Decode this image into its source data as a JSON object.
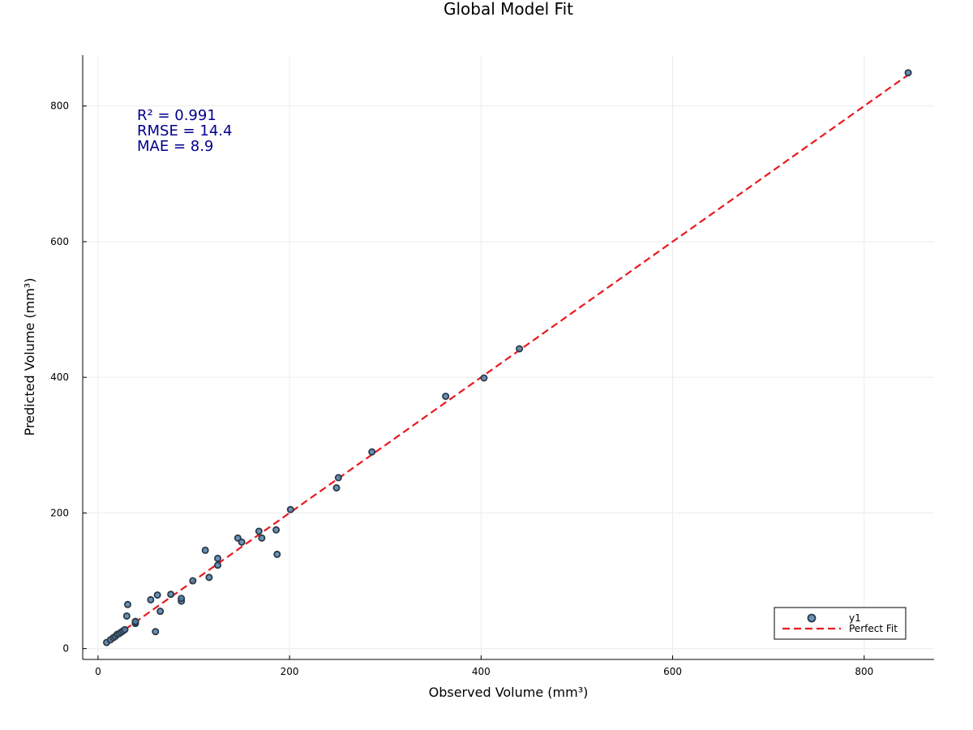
{
  "chart_data": {
    "type": "scatter",
    "title": "Global Model Fit",
    "xlabel": "Observed Volume (mm³)",
    "ylabel": "Predicted Volume (mm³)",
    "xlim": [
      -16,
      873
    ],
    "ylim": [
      -16,
      875
    ],
    "xticks": [
      0,
      200,
      400,
      600,
      800
    ],
    "yticks": [
      0,
      200,
      400,
      600,
      800
    ],
    "grid": true,
    "legend_position": "bottom-right",
    "annotations": [
      "R² = 0.991",
      "RMSE = 14.4",
      "MAE = 8.9"
    ],
    "annotation_color": "#00008b",
    "series": [
      {
        "name": "y1",
        "kind": "scatter",
        "color": "#4f7fa8",
        "points": [
          [
            9,
            9
          ],
          [
            13,
            13
          ],
          [
            16,
            16
          ],
          [
            18,
            18
          ],
          [
            20,
            21
          ],
          [
            22,
            22
          ],
          [
            24,
            24
          ],
          [
            26,
            26
          ],
          [
            28,
            28
          ],
          [
            30,
            48
          ],
          [
            31,
            65
          ],
          [
            39,
            37
          ],
          [
            39,
            38
          ],
          [
            39,
            39
          ],
          [
            39,
            40
          ],
          [
            55,
            72
          ],
          [
            60,
            25
          ],
          [
            62,
            79
          ],
          [
            65,
            55
          ],
          [
            76,
            80
          ],
          [
            87,
            70
          ],
          [
            87,
            74
          ],
          [
            99,
            100
          ],
          [
            112,
            145
          ],
          [
            116,
            105
          ],
          [
            125,
            123
          ],
          [
            125,
            133
          ],
          [
            146,
            163
          ],
          [
            150,
            157
          ],
          [
            168,
            173
          ],
          [
            171,
            163
          ],
          [
            186,
            175
          ],
          [
            187,
            139
          ],
          [
            201,
            205
          ],
          [
            249,
            237
          ],
          [
            251,
            252
          ],
          [
            286,
            290
          ],
          [
            363,
            372
          ],
          [
            403,
            399
          ],
          [
            440,
            442
          ],
          [
            846,
            849
          ]
        ]
      },
      {
        "name": "Perfect Fit",
        "kind": "line",
        "color": "#e8191e",
        "dash": true,
        "x": [
          9,
          849
        ],
        "y": [
          9,
          849
        ]
      }
    ]
  }
}
